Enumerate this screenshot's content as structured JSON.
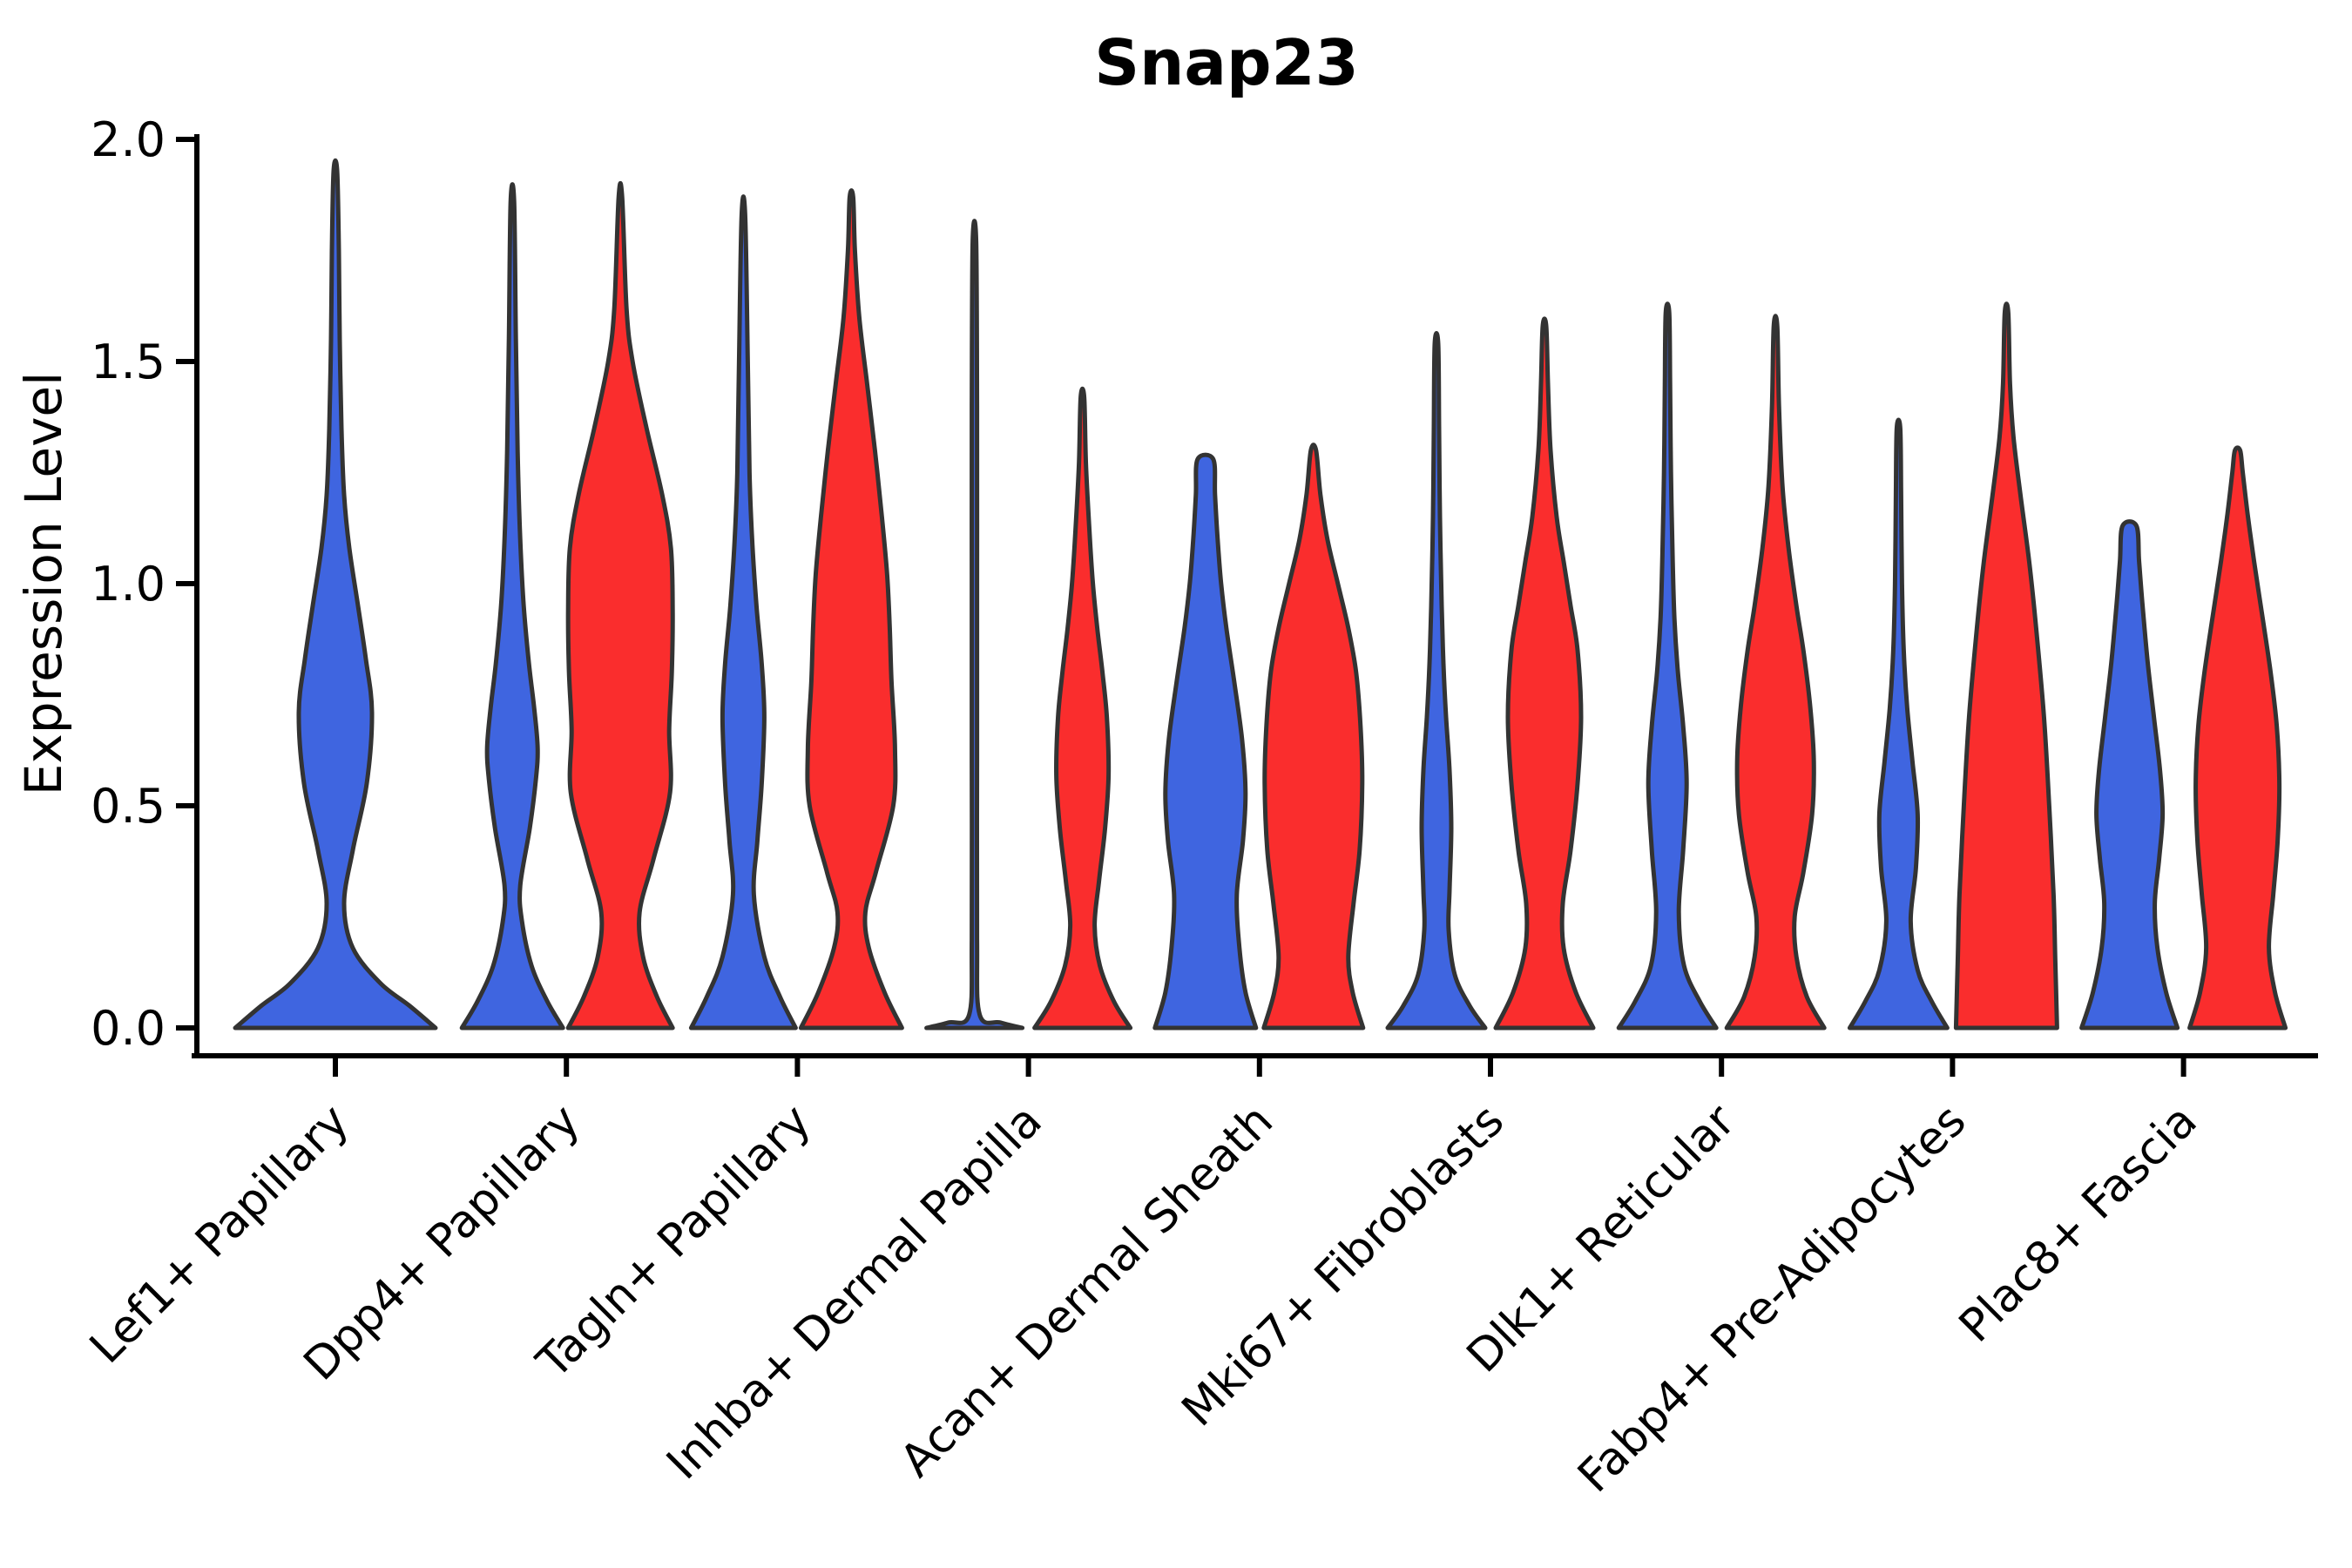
{
  "figure": {
    "background": "#ffffff",
    "title": "Snap23",
    "ylabel": "Expression Level"
  },
  "chart_data": {
    "type": "violin",
    "title": "Snap23",
    "xlabel": "",
    "ylabel": "Expression Level",
    "ylim": [
      0.0,
      2.0
    ],
    "ytick_values": [
      0.0,
      0.5,
      1.0,
      1.5,
      2.0
    ],
    "ytick_labels": [
      "0.0",
      "0.5",
      "1.0",
      "1.5",
      "2.0"
    ],
    "grid": false,
    "legend": "none",
    "categories": [
      "Lef1+ Papillary",
      "Dpp4+ Papillary",
      "Tagln+ Papillary",
      "Inhba+ Dermal Papilla",
      "Acan+ Dermal Sheath",
      "Mki67+ Fibroblasts",
      "Dlk1+ Reticular",
      "Fabp4+ Pre-Adipocytes",
      "Plac8+ Fascia"
    ],
    "colors": {
      "blue_series": "#3F65E0",
      "red_series": "#FA2D2D",
      "outline": "#333333"
    },
    "profile_format": "[expression_level, half_width_px] read off the rendered plot; violins are symmetric about their center",
    "violins": [
      {
        "category_index": 0,
        "category": "Lef1+ Papillary",
        "series": "blue",
        "position": "center",
        "max_expression": 1.93,
        "profile": [
          [
            0,
            115
          ],
          [
            0.05,
            85
          ],
          [
            0.1,
            52
          ],
          [
            0.18,
            20
          ],
          [
            0.28,
            10
          ],
          [
            0.4,
            20
          ],
          [
            0.55,
            36
          ],
          [
            0.71,
            42
          ],
          [
            0.83,
            35
          ],
          [
            0.95,
            26
          ],
          [
            1.08,
            16
          ],
          [
            1.2,
            10
          ],
          [
            1.35,
            7
          ],
          [
            1.55,
            5
          ],
          [
            1.75,
            4
          ],
          [
            1.93,
            2
          ]
        ]
      },
      {
        "category_index": 1,
        "category": "Dpp4+ Papillary",
        "series": "blue",
        "position": "left",
        "max_expression": 1.86,
        "profile": [
          [
            0,
            58
          ],
          [
            0.06,
            40
          ],
          [
            0.14,
            22
          ],
          [
            0.24,
            11
          ],
          [
            0.32,
            9
          ],
          [
            0.45,
            20
          ],
          [
            0.56,
            27
          ],
          [
            0.63,
            29
          ],
          [
            0.72,
            25
          ],
          [
            0.82,
            19
          ],
          [
            0.95,
            13
          ],
          [
            1.1,
            9
          ],
          [
            1.3,
            6
          ],
          [
            1.55,
            4
          ],
          [
            1.86,
            2
          ]
        ]
      },
      {
        "category_index": 1,
        "category": "Dpp4+ Papillary",
        "series": "red",
        "position": "right",
        "max_expression": 1.87,
        "profile": [
          [
            0,
            60
          ],
          [
            0.07,
            42
          ],
          [
            0.16,
            26
          ],
          [
            0.26,
            22
          ],
          [
            0.38,
            38
          ],
          [
            0.53,
            57
          ],
          [
            0.67,
            56
          ],
          [
            0.8,
            59
          ],
          [
            0.94,
            60
          ],
          [
            1.08,
            58
          ],
          [
            1.2,
            48
          ],
          [
            1.35,
            30
          ],
          [
            1.5,
            14
          ],
          [
            1.62,
            7
          ],
          [
            1.87,
            2
          ]
        ]
      },
      {
        "category_index": 2,
        "category": "Tagln+ Papillary",
        "series": "blue",
        "position": "left",
        "max_expression": 1.83,
        "profile": [
          [
            0,
            60
          ],
          [
            0.07,
            42
          ],
          [
            0.16,
            24
          ],
          [
            0.3,
            12
          ],
          [
            0.42,
            16
          ],
          [
            0.55,
            21
          ],
          [
            0.7,
            24
          ],
          [
            0.82,
            21
          ],
          [
            0.95,
            15
          ],
          [
            1.1,
            10
          ],
          [
            1.25,
            7
          ],
          [
            1.5,
            5
          ],
          [
            1.83,
            2
          ]
        ]
      },
      {
        "category_index": 2,
        "category": "Tagln+ Papillary",
        "series": "red",
        "position": "right",
        "max_expression": 1.87,
        "profile": [
          [
            0,
            58
          ],
          [
            0.08,
            38
          ],
          [
            0.18,
            20
          ],
          [
            0.26,
            16
          ],
          [
            0.35,
            28
          ],
          [
            0.5,
            48
          ],
          [
            0.63,
            50
          ],
          [
            0.78,
            46
          ],
          [
            0.9,
            44
          ],
          [
            1.02,
            41
          ],
          [
            1.15,
            35
          ],
          [
            1.3,
            27
          ],
          [
            1.45,
            18
          ],
          [
            1.6,
            9
          ],
          [
            1.75,
            4
          ],
          [
            1.87,
            2
          ]
        ]
      },
      {
        "category_index": 3,
        "category": "Inhba+ Dermal Papilla",
        "series": "blue",
        "position": "left",
        "max_expression": 1.77,
        "profile": [
          [
            0,
            55
          ],
          [
            0.012,
            30
          ],
          [
            0.03,
            6
          ],
          [
            0.2,
            3
          ],
          [
            0.6,
            3
          ],
          [
            1.0,
            3
          ],
          [
            1.4,
            3
          ],
          [
            1.77,
            2
          ]
        ]
      },
      {
        "category_index": 3,
        "category": "Inhba+ Dermal Papilla",
        "series": "red",
        "position": "right",
        "max_expression": 1.42,
        "profile": [
          [
            0,
            55
          ],
          [
            0.06,
            36
          ],
          [
            0.14,
            20
          ],
          [
            0.23,
            14
          ],
          [
            0.33,
            19
          ],
          [
            0.45,
            26
          ],
          [
            0.57,
            30
          ],
          [
            0.7,
            28
          ],
          [
            0.8,
            23
          ],
          [
            0.9,
            17
          ],
          [
            1.0,
            12
          ],
          [
            1.12,
            8
          ],
          [
            1.27,
            4
          ],
          [
            1.42,
            2
          ]
        ]
      },
      {
        "category_index": 4,
        "category": "Acan+ Dermal Sheath",
        "series": "blue",
        "position": "left",
        "max_expression": 1.28,
        "profile": [
          [
            0,
            58
          ],
          [
            0.08,
            46
          ],
          [
            0.18,
            39
          ],
          [
            0.3,
            36
          ],
          [
            0.42,
            43
          ],
          [
            0.53,
            46
          ],
          [
            0.65,
            42
          ],
          [
            0.78,
            33
          ],
          [
            0.9,
            24
          ],
          [
            1.0,
            18
          ],
          [
            1.1,
            14
          ],
          [
            1.2,
            11
          ],
          [
            1.28,
            9
          ]
        ]
      },
      {
        "category_index": 4,
        "category": "Acan+ Dermal Sheath",
        "series": "red",
        "position": "right",
        "max_expression": 1.3,
        "profile": [
          [
            0,
            57
          ],
          [
            0.08,
            45
          ],
          [
            0.16,
            40
          ],
          [
            0.28,
            46
          ],
          [
            0.4,
            53
          ],
          [
            0.55,
            56
          ],
          [
            0.68,
            54
          ],
          [
            0.8,
            49
          ],
          [
            0.9,
            40
          ],
          [
            1.0,
            28
          ],
          [
            1.1,
            16
          ],
          [
            1.2,
            8
          ],
          [
            1.3,
            3
          ]
        ]
      },
      {
        "category_index": 5,
        "category": "Mki67+ Fibroblasts",
        "series": "blue",
        "position": "left",
        "max_expression": 1.54,
        "profile": [
          [
            0,
            56
          ],
          [
            0.05,
            38
          ],
          [
            0.12,
            21
          ],
          [
            0.22,
            14
          ],
          [
            0.31,
            15
          ],
          [
            0.45,
            17
          ],
          [
            0.58,
            15
          ],
          [
            0.7,
            11
          ],
          [
            0.82,
            8
          ],
          [
            0.95,
            6
          ],
          [
            1.15,
            4
          ],
          [
            1.35,
            3
          ],
          [
            1.54,
            2
          ]
        ]
      },
      {
        "category_index": 5,
        "category": "Mki67+ Fibroblasts",
        "series": "red",
        "position": "right",
        "max_expression": 1.58,
        "profile": [
          [
            0,
            56
          ],
          [
            0.08,
            36
          ],
          [
            0.18,
            22
          ],
          [
            0.28,
            21
          ],
          [
            0.4,
            30
          ],
          [
            0.55,
            38
          ],
          [
            0.7,
            42
          ],
          [
            0.85,
            38
          ],
          [
            0.95,
            30
          ],
          [
            1.05,
            22
          ],
          [
            1.15,
            14
          ],
          [
            1.3,
            7
          ],
          [
            1.45,
            4
          ],
          [
            1.58,
            2
          ]
        ]
      },
      {
        "category_index": 6,
        "category": "Dlk1+ Reticular",
        "series": "blue",
        "position": "left",
        "max_expression": 1.61,
        "profile": [
          [
            0,
            56
          ],
          [
            0.06,
            37
          ],
          [
            0.14,
            19
          ],
          [
            0.26,
            13
          ],
          [
            0.4,
            18
          ],
          [
            0.55,
            22
          ],
          [
            0.68,
            18
          ],
          [
            0.8,
            12
          ],
          [
            0.92,
            8
          ],
          [
            1.05,
            6
          ],
          [
            1.25,
            4
          ],
          [
            1.45,
            3
          ],
          [
            1.61,
            2
          ]
        ]
      },
      {
        "category_index": 6,
        "category": "Dlk1+ Reticular",
        "series": "red",
        "position": "right",
        "max_expression": 1.58,
        "profile": [
          [
            0,
            56
          ],
          [
            0.07,
            36
          ],
          [
            0.16,
            24
          ],
          [
            0.25,
            22
          ],
          [
            0.35,
            32
          ],
          [
            0.48,
            42
          ],
          [
            0.6,
            44
          ],
          [
            0.72,
            40
          ],
          [
            0.85,
            32
          ],
          [
            0.95,
            24
          ],
          [
            1.08,
            15
          ],
          [
            1.22,
            8
          ],
          [
            1.4,
            4
          ],
          [
            1.58,
            2
          ]
        ]
      },
      {
        "category_index": 7,
        "category": "Fabp4+ Pre-Adipocytes",
        "series": "blue",
        "position": "left",
        "max_expression": 1.35,
        "profile": [
          [
            0,
            56
          ],
          [
            0.06,
            38
          ],
          [
            0.13,
            22
          ],
          [
            0.24,
            14
          ],
          [
            0.36,
            20
          ],
          [
            0.48,
            22
          ],
          [
            0.6,
            16
          ],
          [
            0.72,
            10
          ],
          [
            0.85,
            6
          ],
          [
            1.0,
            4
          ],
          [
            1.2,
            3
          ],
          [
            1.35,
            2
          ]
        ]
      },
      {
        "category_index": 7,
        "category": "Fabp4+ Pre-Adipocytes",
        "series": "red",
        "position": "right",
        "max_expression": 1.61,
        "profile": [
          [
            0,
            58
          ],
          [
            0.15,
            56
          ],
          [
            0.3,
            54
          ],
          [
            0.5,
            49
          ],
          [
            0.7,
            43
          ],
          [
            0.9,
            34
          ],
          [
            1.05,
            26
          ],
          [
            1.2,
            16
          ],
          [
            1.33,
            8
          ],
          [
            1.45,
            4
          ],
          [
            1.61,
            2
          ]
        ]
      },
      {
        "category_index": 8,
        "category": "Plac8+ Fascia",
        "series": "blue",
        "position": "left",
        "max_expression": 1.13,
        "profile": [
          [
            0,
            55
          ],
          [
            0.08,
            42
          ],
          [
            0.18,
            32
          ],
          [
            0.28,
            29
          ],
          [
            0.38,
            34
          ],
          [
            0.48,
            38
          ],
          [
            0.58,
            35
          ],
          [
            0.7,
            28
          ],
          [
            0.82,
            21
          ],
          [
            0.95,
            15
          ],
          [
            1.05,
            11
          ],
          [
            1.13,
            8
          ]
        ]
      },
      {
        "category_index": 8,
        "category": "Plac8+ Fascia",
        "series": "red",
        "position": "right",
        "max_expression": 1.3,
        "profile": [
          [
            0,
            55
          ],
          [
            0.08,
            43
          ],
          [
            0.18,
            36
          ],
          [
            0.3,
            41
          ],
          [
            0.42,
            46
          ],
          [
            0.55,
            48
          ],
          [
            0.68,
            45
          ],
          [
            0.8,
            38
          ],
          [
            0.92,
            29
          ],
          [
            1.05,
            19
          ],
          [
            1.15,
            12
          ],
          [
            1.25,
            6
          ],
          [
            1.3,
            3
          ]
        ]
      }
    ]
  }
}
